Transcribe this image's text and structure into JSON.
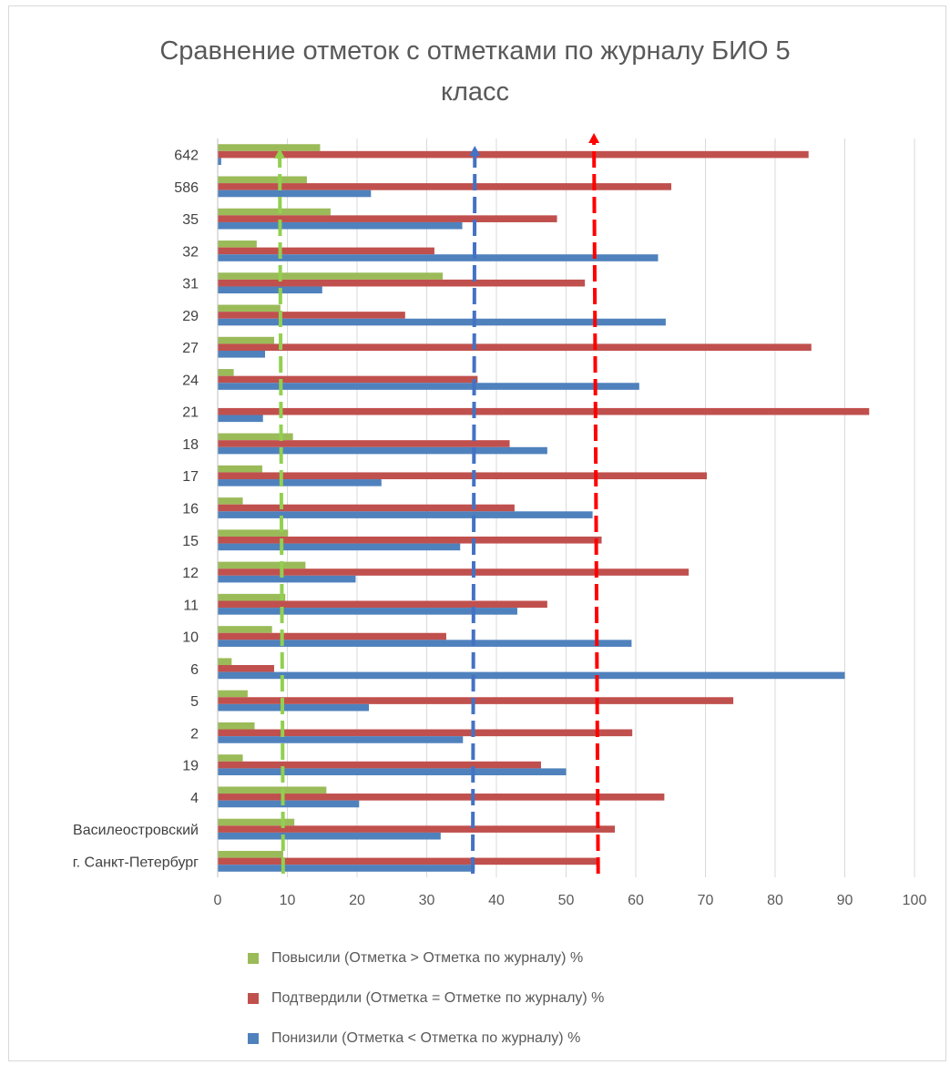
{
  "chart_data": {
    "type": "bar",
    "orientation": "horizontal",
    "title": "Сравнение отметок с отметками по журналу БИО 5 класс",
    "title_lines": [
      "Сравнение отметок с отметками по журналу БИО 5",
      "класс"
    ],
    "categories": [
      "642",
      "586",
      "35",
      "32",
      "31",
      "29",
      "27",
      "24",
      "21",
      "18",
      "17",
      "16",
      "15",
      "12",
      "11",
      "10",
      "6",
      "5",
      "2",
      "19",
      "4",
      "Василеостровский",
      "г. Санкт-Петербург"
    ],
    "series": [
      {
        "name": "Повысили (Отметка > Отметка по журналу) %",
        "color": "#9bbb59",
        "values": [
          14.7,
          12.8,
          16.2,
          5.6,
          32.3,
          9.0,
          8.1,
          2.3,
          0.0,
          10.8,
          6.4,
          3.6,
          10.1,
          12.6,
          9.7,
          7.8,
          2.0,
          4.3,
          5.3,
          3.6,
          15.6,
          11.0,
          9.4
        ]
      },
      {
        "name": "Подтвердили (Отметка = Отметке по журналу) %",
        "color": "#c0504d",
        "values": [
          84.8,
          65.1,
          48.7,
          31.1,
          52.7,
          26.9,
          85.2,
          37.3,
          93.5,
          41.9,
          70.2,
          42.6,
          55.1,
          67.6,
          47.3,
          32.8,
          8.1,
          74.0,
          59.5,
          46.4,
          64.1,
          57.0,
          54.6
        ]
      },
      {
        "name": "Понизили (Отметка < Отметка по журналу) %",
        "color": "#4f81bd",
        "values": [
          0.5,
          22.0,
          35.1,
          63.2,
          15.0,
          64.3,
          6.8,
          60.5,
          6.5,
          47.3,
          23.5,
          53.8,
          34.8,
          19.8,
          43.0,
          59.4,
          90.0,
          21.7,
          35.2,
          50.0,
          20.3,
          32.0,
          36.9
        ]
      }
    ],
    "reference_lines": [
      {
        "series": "Повысили (Отметка > Отметка по журналу) %",
        "color": "#92d050",
        "value_top": 8.9,
        "value_bottom": 9.4
      },
      {
        "series": "Понизили (Отметка < Отметка по журналу) %",
        "color": "#4472c4",
        "value_top": 36.9,
        "value_bottom": 36.6
      },
      {
        "series": "Подтвердили (Отметка = Отметке по журналу) %",
        "color": "#ff0000",
        "value_top": 54.0,
        "value_bottom": 54.6
      }
    ],
    "xlim": [
      0,
      100
    ],
    "xticks": [
      0,
      10,
      20,
      30,
      40,
      50,
      60,
      70,
      80,
      90,
      100
    ],
    "grid": true,
    "legend_position": "bottom"
  }
}
